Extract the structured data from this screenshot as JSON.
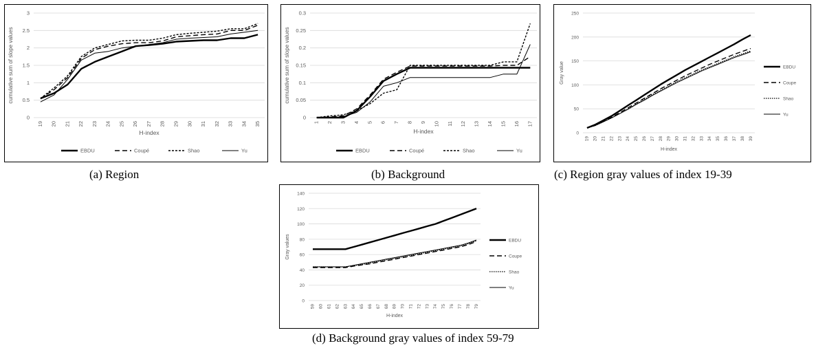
{
  "colors": {
    "line": "#000000",
    "grid": "#d9d9d9",
    "text": "#595959"
  },
  "chart_data": [
    {
      "type": "line",
      "caption": "(a) Region",
      "xlabel": "H-index",
      "ylabel": "cumulative sum of slope values",
      "categories": [
        "19",
        "20",
        "21",
        "22",
        "23",
        "24",
        "25",
        "26",
        "27",
        "28",
        "29",
        "30",
        "31",
        "32",
        "33",
        "34",
        "35"
      ],
      "ylim": [
        0,
        3
      ],
      "yticks": [
        "0",
        "0.5",
        "1",
        "1.5",
        "2",
        "2.5",
        "3"
      ],
      "legend_position": "bottom",
      "series": [
        {
          "name": "EBDU",
          "style": "thick",
          "values": [
            0.55,
            0.7,
            0.95,
            1.4,
            1.6,
            1.75,
            1.9,
            2.05,
            2.08,
            2.12,
            2.18,
            2.2,
            2.22,
            2.22,
            2.28,
            2.28,
            2.38
          ]
        },
        {
          "name": "Coupé",
          "style": "dash",
          "values": [
            0.55,
            0.8,
            1.15,
            1.7,
            1.95,
            2.05,
            2.12,
            2.15,
            2.15,
            2.2,
            2.32,
            2.35,
            2.38,
            2.4,
            2.5,
            2.5,
            2.65
          ]
        },
        {
          "name": "Shao",
          "style": "shortdash",
          "values": [
            0.55,
            0.85,
            1.2,
            1.75,
            2.0,
            2.1,
            2.2,
            2.22,
            2.22,
            2.28,
            2.38,
            2.42,
            2.45,
            2.48,
            2.55,
            2.55,
            2.7
          ]
        },
        {
          "name": "Yu",
          "style": "thin",
          "values": [
            0.45,
            0.65,
            1.1,
            1.65,
            1.85,
            1.9,
            2.0,
            2.05,
            2.1,
            2.15,
            2.25,
            2.28,
            2.3,
            2.32,
            2.4,
            2.45,
            2.5
          ]
        }
      ]
    },
    {
      "type": "line",
      "caption": "(b) Background",
      "xlabel": "H-index",
      "ylabel": "cumulative sum of slope values",
      "categories": [
        "1",
        "2",
        "3",
        "4",
        "5",
        "6",
        "7",
        "8",
        "9",
        "10",
        "11",
        "12",
        "13",
        "14",
        "15",
        "16",
        "17"
      ],
      "ylim": [
        0,
        0.3
      ],
      "yticks": [
        "0",
        "0.05",
        "0.1",
        "0.15",
        "0.2",
        "0.25",
        "0.3"
      ],
      "legend_position": "bottom",
      "series": [
        {
          "name": "EBDU",
          "style": "thick",
          "values": [
            0,
            0,
            0,
            0.02,
            0.06,
            0.105,
            0.125,
            0.143,
            0.143,
            0.143,
            0.143,
            0.143,
            0.143,
            0.143,
            0.143,
            0.143,
            0.143
          ]
        },
        {
          "name": "Coupé",
          "style": "dash",
          "values": [
            0,
            0.002,
            0.005,
            0.025,
            0.065,
            0.11,
            0.13,
            0.148,
            0.148,
            0.148,
            0.148,
            0.148,
            0.148,
            0.148,
            0.15,
            0.15,
            0.175
          ]
        },
        {
          "name": "Shao",
          "style": "shortdash",
          "values": [
            0,
            0.005,
            0.008,
            0.02,
            0.04,
            0.07,
            0.08,
            0.15,
            0.15,
            0.15,
            0.15,
            0.15,
            0.15,
            0.15,
            0.16,
            0.16,
            0.27
          ]
        },
        {
          "name": "Yu",
          "style": "thin",
          "values": [
            0,
            0,
            0.003,
            0.015,
            0.045,
            0.09,
            0.1,
            0.115,
            0.115,
            0.115,
            0.115,
            0.115,
            0.115,
            0.115,
            0.125,
            0.125,
            0.21
          ]
        }
      ]
    },
    {
      "type": "line",
      "caption": "(c) Region gray values of index 19-39",
      "xlabel": "H-index",
      "ylabel": "Gray value",
      "categories": [
        "19",
        "20",
        "21",
        "22",
        "23",
        "24",
        "25",
        "26",
        "27",
        "28",
        "29",
        "30",
        "31",
        "32",
        "33",
        "34",
        "35",
        "36",
        "37",
        "38",
        "39"
      ],
      "ylim": [
        0,
        250
      ],
      "yticks": [
        "0",
        "50",
        "100",
        "150",
        "200",
        "250"
      ],
      "legend_position": "right",
      "series": [
        {
          "name": "EBDU",
          "style": "thick",
          "values": [
            10,
            17,
            26,
            35,
            46,
            57,
            68,
            79,
            90,
            101,
            111,
            121,
            131,
            140,
            149,
            158,
            167,
            176,
            185,
            195,
            204
          ]
        },
        {
          "name": "Coupe",
          "style": "dash",
          "values": [
            10,
            16,
            24,
            32,
            42,
            52,
            62,
            72,
            82,
            92,
            101,
            110,
            119,
            127,
            135,
            143,
            150,
            157,
            164,
            170,
            176
          ]
        },
        {
          "name": "Shao",
          "style": "dot",
          "values": [
            10,
            15,
            23,
            31,
            40,
            50,
            60,
            70,
            80,
            89,
            98,
            107,
            115,
            123,
            131,
            138,
            145,
            152,
            159,
            165,
            171
          ]
        },
        {
          "name": "Yu",
          "style": "thin",
          "values": [
            10,
            15,
            23,
            31,
            40,
            49,
            59,
            68,
            78,
            87,
            96,
            105,
            113,
            121,
            129,
            136,
            143,
            150,
            157,
            163,
            169
          ]
        }
      ]
    },
    {
      "type": "line",
      "caption": "(d) Background gray values of index 59-79",
      "xlabel": "H-index",
      "ylabel": "Gray values",
      "categories": [
        "59",
        "60",
        "61",
        "62",
        "63",
        "64",
        "65",
        "66",
        "67",
        "68",
        "69",
        "70",
        "71",
        "72",
        "73",
        "74",
        "75",
        "76",
        "77",
        "78",
        "79"
      ],
      "ylim": [
        0,
        140
      ],
      "yticks": [
        "0",
        "20",
        "40",
        "60",
        "80",
        "100",
        "120",
        "140"
      ],
      "legend_position": "right",
      "series": [
        {
          "name": "EBDU",
          "style": "thick",
          "values": [
            67,
            67,
            67,
            67,
            67,
            70,
            73,
            76,
            79,
            82,
            85,
            88,
            91,
            94,
            97,
            100,
            104,
            108,
            112,
            116,
            120
          ]
        },
        {
          "name": "Coupe",
          "style": "dash",
          "values": [
            43,
            43,
            43,
            43,
            43,
            45,
            46.5,
            48,
            50,
            52,
            54,
            56,
            58,
            60,
            62,
            64,
            66,
            68,
            70,
            73,
            77
          ]
        },
        {
          "name": "Shao",
          "style": "dot",
          "values": [
            44,
            44,
            44,
            44,
            44,
            45.5,
            47,
            49,
            51,
            53,
            55,
            57,
            59,
            61,
            63,
            65,
            67,
            69,
            71,
            74,
            78
          ]
        },
        {
          "name": "Yu",
          "style": "thin",
          "values": [
            44,
            44,
            44,
            44,
            44,
            46,
            48,
            50,
            52,
            54,
            56,
            58,
            60,
            62,
            64,
            66,
            68,
            70,
            72,
            75,
            79
          ]
        }
      ]
    }
  ]
}
